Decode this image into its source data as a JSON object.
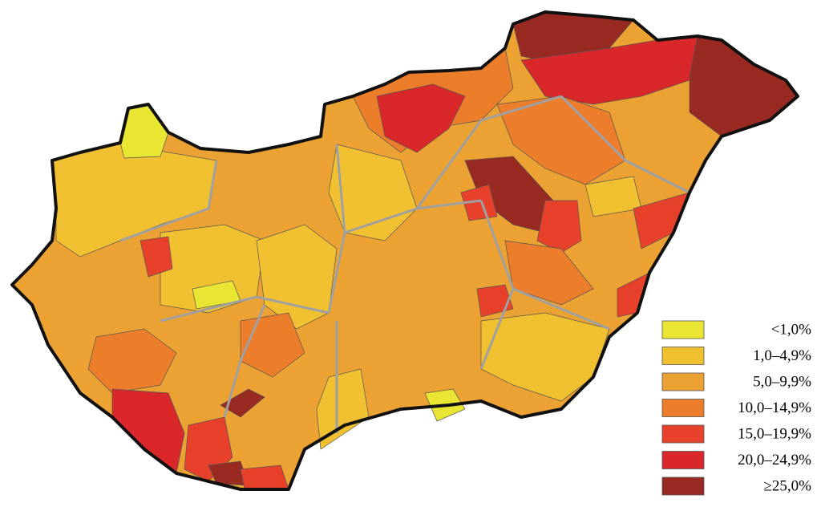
{
  "legend": {
    "items": [
      {
        "label": "<1,0%",
        "color": "#e8e632"
      },
      {
        "label": "1,0–4,9%",
        "color": "#f0c030"
      },
      {
        "label": "5,0–9,9%",
        "color": "#eba232"
      },
      {
        "label": "10,0–14,9%",
        "color": "#ec7d2a"
      },
      {
        "label": "15,0–19,9%",
        "color": "#e8412b"
      },
      {
        "label": "20,0–24,9%",
        "color": "#d9272a"
      },
      {
        "label": "≥25,0%",
        "color": "#982a22"
      }
    ]
  }
}
